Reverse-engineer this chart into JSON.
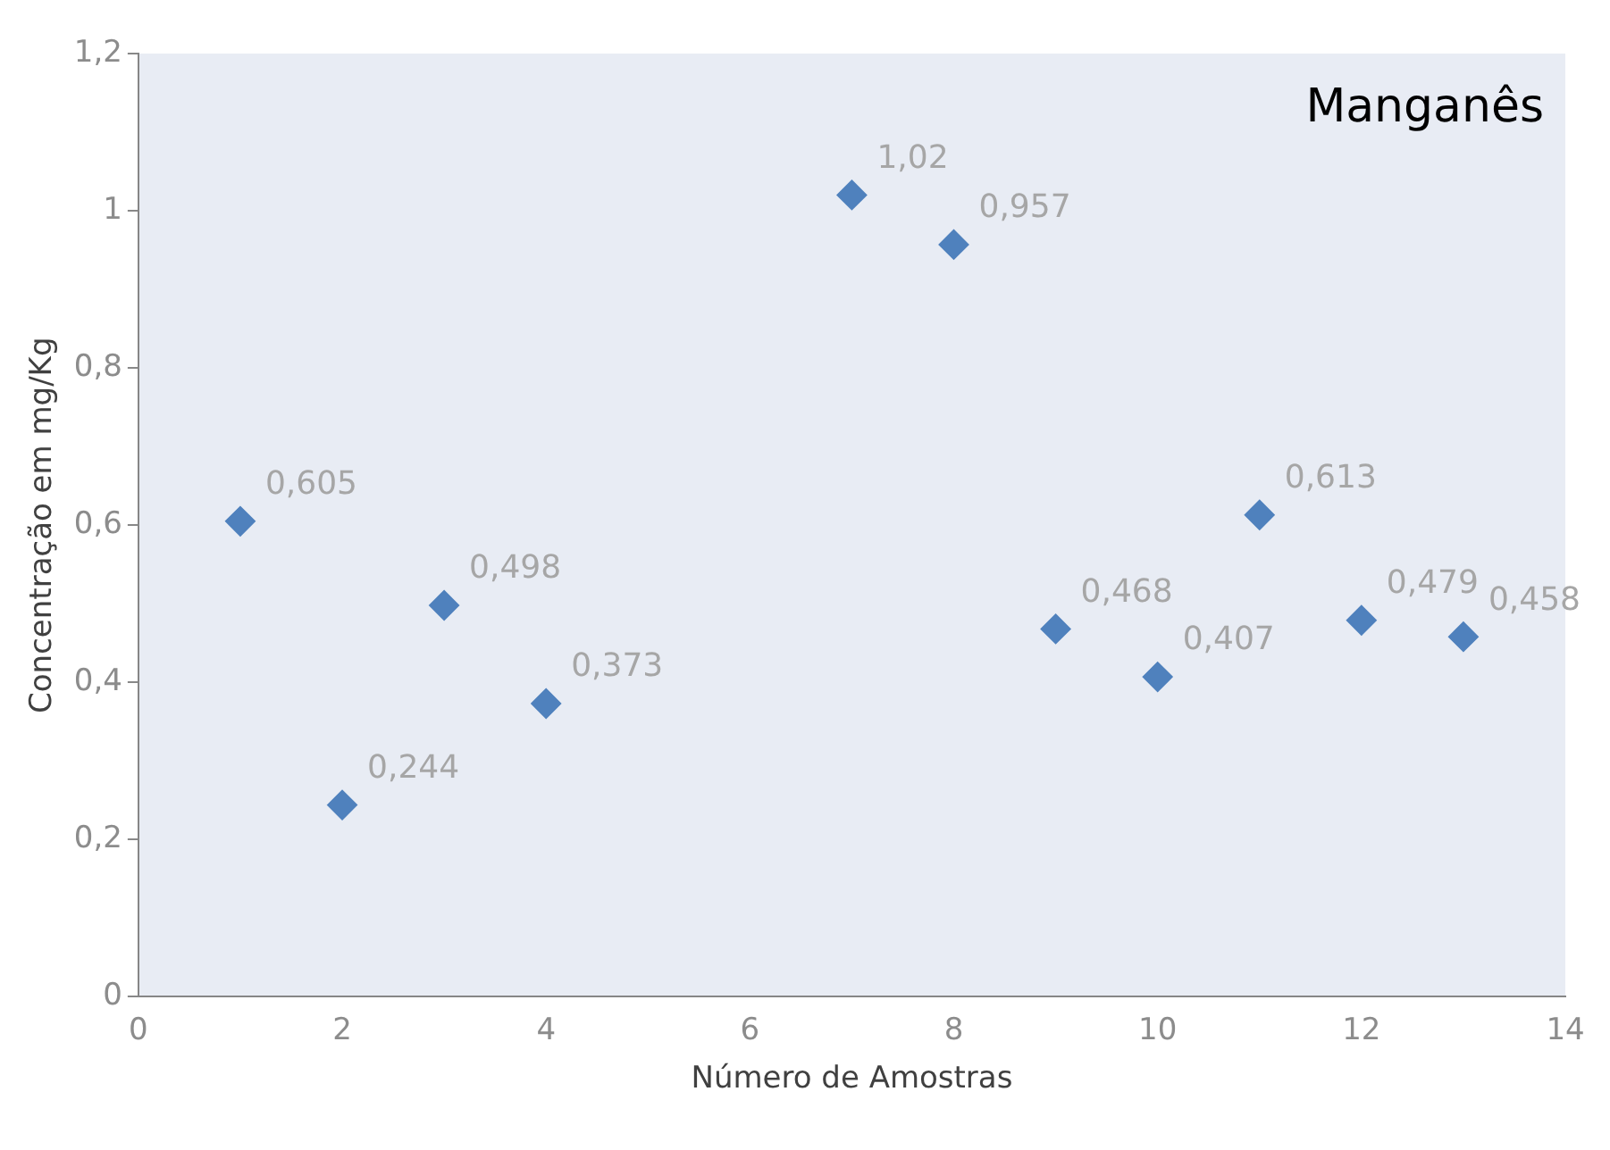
{
  "chart_data": {
    "type": "scatter",
    "title": "Manganês",
    "xlabel": "Número de Amostras",
    "ylabel": "Concentração em mg/Kg",
    "x": [
      1,
      2,
      3,
      4,
      7,
      8,
      9,
      10,
      11,
      12,
      13
    ],
    "values": [
      0.605,
      0.244,
      0.498,
      0.373,
      1.02,
      0.957,
      0.468,
      0.407,
      0.613,
      0.479,
      0.458
    ],
    "value_labels": [
      "0,605",
      "0,244",
      "0,498",
      "0,373",
      "1,02",
      "0,957",
      "0,468",
      "0,407",
      "0,613",
      "0,479",
      "0,458"
    ],
    "color": "#4f81bd",
    "marker": "diamond",
    "grid": false,
    "legend": false,
    "xlim": [
      0,
      14
    ],
    "xticks": [
      0,
      2,
      4,
      6,
      8,
      10,
      12,
      14
    ],
    "ylim": [
      0,
      1.2
    ],
    "yticks": [
      {
        "value": 0,
        "label": "0"
      },
      {
        "value": 0.2,
        "label": "0,2"
      },
      {
        "value": 0.4,
        "label": "0,4"
      },
      {
        "value": 0.6,
        "label": "0,6"
      },
      {
        "value": 0.8,
        "label": "0,8"
      },
      {
        "value": 1,
        "label": "1"
      },
      {
        "value": 1.2,
        "label": "1,2"
      }
    ]
  }
}
